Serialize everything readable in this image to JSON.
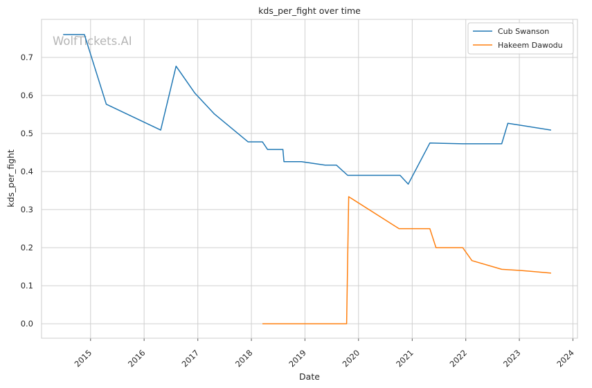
{
  "chart_data": {
    "type": "line",
    "title": "kds_per_fight over time",
    "xlabel": "Date",
    "ylabel": "kds_per_fight",
    "watermark": "WolfTickets.AI",
    "x_axis": "date",
    "xlim": [
      "2014-02-01",
      "2024-02-01"
    ],
    "ylim": [
      -0.038,
      0.8
    ],
    "x_ticks": [
      "2015",
      "2016",
      "2017",
      "2018",
      "2019",
      "2020",
      "2021",
      "2022",
      "2023",
      "2024"
    ],
    "y_ticks": [
      0.0,
      0.1,
      0.2,
      0.3,
      0.4,
      0.5,
      0.6,
      0.7
    ],
    "y_tick_labels": [
      "0.0",
      "0.1",
      "0.2",
      "0.3",
      "0.4",
      "0.5",
      "0.6",
      "0.7"
    ],
    "grid": true,
    "legend_position": "top-right",
    "series": [
      {
        "name": "Cub Swanson",
        "color": "#1f77b4",
        "points": [
          [
            "2014-06-28",
            0.76
          ],
          [
            "2014-11-20",
            0.76
          ],
          [
            "2015-04-18",
            0.577
          ],
          [
            "2016-04-23",
            0.509
          ],
          [
            "2016-08-06",
            0.677
          ],
          [
            "2016-12-10",
            0.607
          ],
          [
            "2017-04-22",
            0.552
          ],
          [
            "2017-12-09",
            0.478
          ],
          [
            "2018-03-17",
            0.478
          ],
          [
            "2018-04-21",
            0.458
          ],
          [
            "2018-08-04",
            0.458
          ],
          [
            "2018-08-11",
            0.426
          ],
          [
            "2018-12-08",
            0.426
          ],
          [
            "2019-05-18",
            0.417
          ],
          [
            "2019-08-03",
            0.417
          ],
          [
            "2019-10-19",
            0.39
          ],
          [
            "2020-10-10",
            0.39
          ],
          [
            "2020-12-05",
            0.367
          ],
          [
            "2021-05-01",
            0.475
          ],
          [
            "2021-12-11",
            0.473
          ],
          [
            "2022-09-03",
            0.473
          ],
          [
            "2022-10-15",
            0.527
          ],
          [
            "2023-08-05",
            0.509
          ]
        ]
      },
      {
        "name": "Hakeem Dawodu",
        "color": "#ff7f0e",
        "points": [
          [
            "2018-03-17",
            0.0
          ],
          [
            "2019-10-12",
            0.0
          ],
          [
            "2019-10-26",
            0.334
          ],
          [
            "2020-10-03",
            0.25
          ],
          [
            "2021-05-01",
            0.25
          ],
          [
            "2021-06-12",
            0.2
          ],
          [
            "2021-12-11",
            0.2
          ],
          [
            "2022-02-12",
            0.166
          ],
          [
            "2022-09-03",
            0.143
          ],
          [
            "2023-01-14",
            0.14
          ],
          [
            "2023-08-05",
            0.133
          ]
        ]
      }
    ]
  }
}
